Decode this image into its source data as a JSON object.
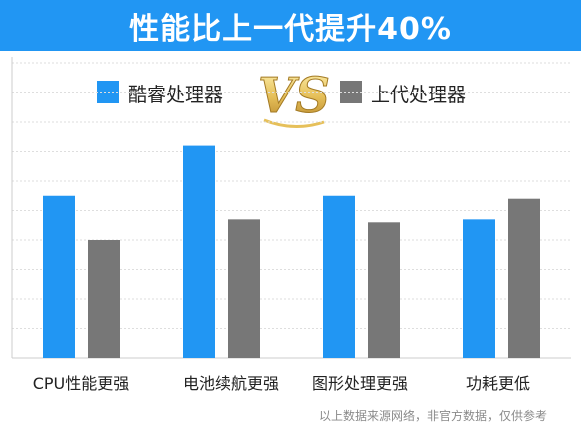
{
  "header": {
    "title": "性能比上一代提升40%"
  },
  "legend": {
    "left_label": "酷睿处理器",
    "right_label": "上代处理器",
    "vs_text": "VS"
  },
  "colors": {
    "banner": "#2196f3",
    "series_blue": "#2196f3",
    "series_gray": "#777777",
    "vs_gold": "#e6c05a"
  },
  "chart_data": {
    "type": "bar",
    "title": "性能比上一代提升40%",
    "categories": [
      "CPU性能更强",
      "电池续航更强",
      "图形处理更强",
      "功耗更低"
    ],
    "series": [
      {
        "name": "酷睿处理器",
        "values": [
          5.5,
          7.2,
          5.5,
          4.7
        ]
      },
      {
        "name": "上代处理器",
        "values": [
          4.0,
          4.7,
          4.6,
          5.4
        ]
      }
    ],
    "ylim": [
      0,
      10
    ],
    "grid": true,
    "legend_position": "top"
  },
  "footnote": "以上数据来源网络，非官方数据，仅供参考"
}
